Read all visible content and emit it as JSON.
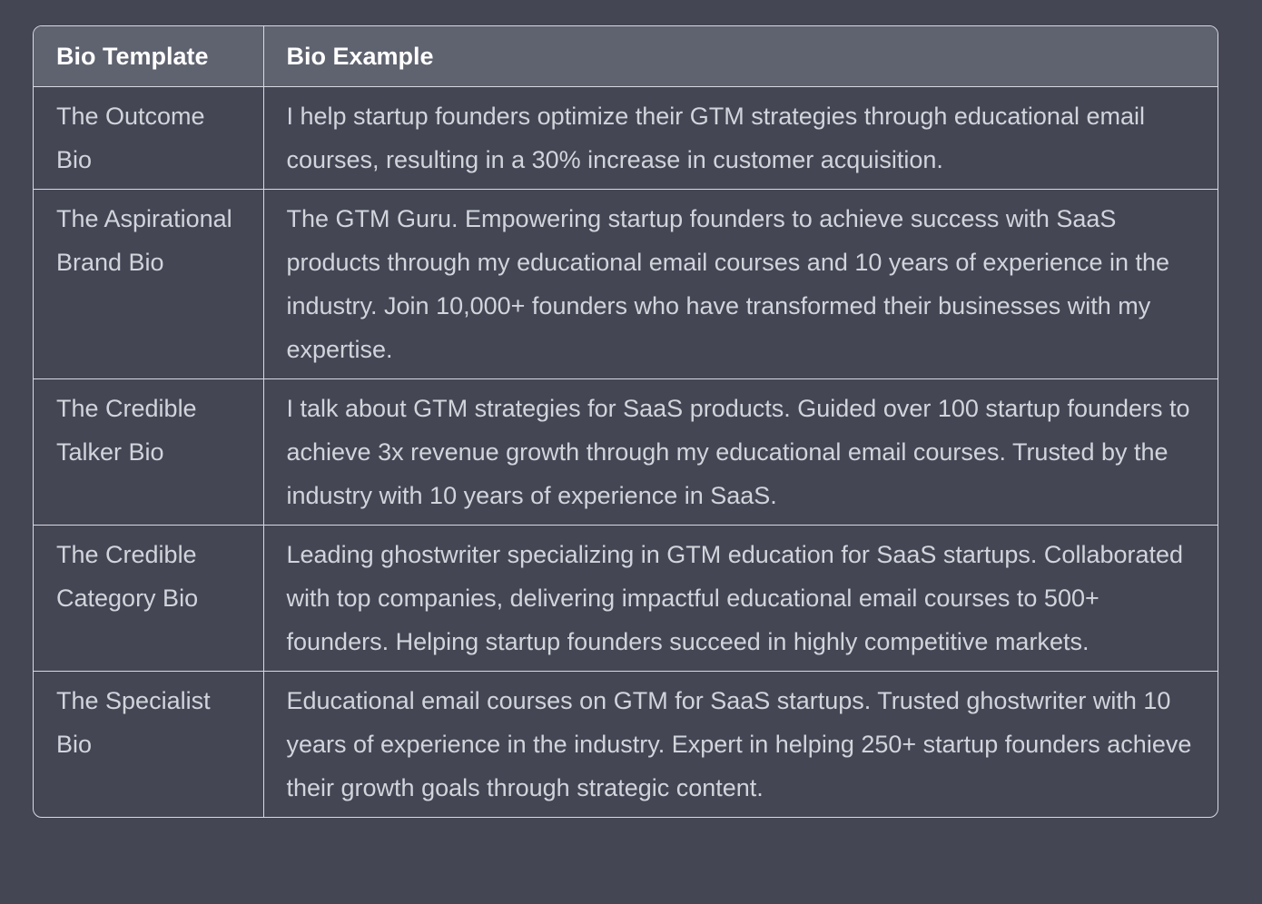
{
  "table": {
    "headers": [
      "Bio Template",
      "Bio Example"
    ],
    "rows": [
      {
        "template": "The Outcome Bio",
        "example": "I help startup founders optimize their GTM strategies through educational email courses, resulting in a 30% increase in customer acquisition."
      },
      {
        "template": "The Aspirational Brand Bio",
        "example": "The GTM Guru. Empowering startup founders to achieve success with SaaS products through my educational email courses and 10 years of experience in the industry. Join 10,000+ founders who have transformed their businesses with my expertise."
      },
      {
        "template": "The Credible Talker Bio",
        "example": "I talk about GTM strategies for SaaS products. Guided over 100 startup founders to achieve 3x revenue growth through my educational email courses. Trusted by the industry with 10 years of experience in SaaS."
      },
      {
        "template": "The Credible Category Bio",
        "example": "Leading ghostwriter specializing in GTM education for SaaS startups. Collaborated with top companies, delivering impactful educational email courses to 500+ founders. Helping startup founders succeed in highly competitive markets."
      },
      {
        "template": "The Specialist Bio",
        "example": "Educational email courses on GTM for SaaS startups. Trusted ghostwriter with 10 years of experience in the industry. Expert in helping 250+ startup founders achieve their growth goals through strategic content."
      }
    ]
  }
}
